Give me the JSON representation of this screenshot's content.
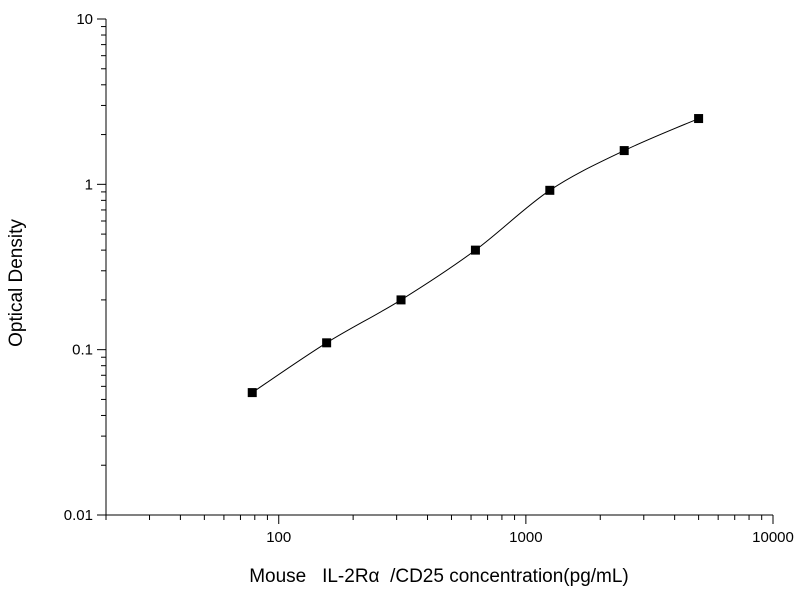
{
  "chart_data": {
    "type": "scatter",
    "xlabel": "Mouse   IL-2Rα  /CD25 concentration(pg/mL)",
    "ylabel": "Optical Density",
    "x_scale": "log",
    "y_scale": "log",
    "xlim": [
      20,
      10000
    ],
    "ylim": [
      0.01,
      10
    ],
    "x_major_ticks": [
      100,
      1000,
      10000
    ],
    "x_tick_labels": [
      "100",
      "1000",
      "10000"
    ],
    "y_major_ticks": [
      0.01,
      0.1,
      1,
      10
    ],
    "y_tick_labels": [
      "0.01",
      "0.1",
      "1",
      "10"
    ],
    "grid": false,
    "legend": "none",
    "colors": {
      "marker": "#000000",
      "curve": "#000000",
      "axis": "#000000"
    },
    "series": [
      {
        "x": [
          78.125,
          156.25,
          312.5,
          625,
          1250,
          2500,
          5000
        ],
        "y": [
          0.055,
          0.11,
          0.2,
          0.4,
          0.92,
          1.6,
          2.5
        ],
        "marker": "square",
        "fit_curve": true
      }
    ]
  }
}
